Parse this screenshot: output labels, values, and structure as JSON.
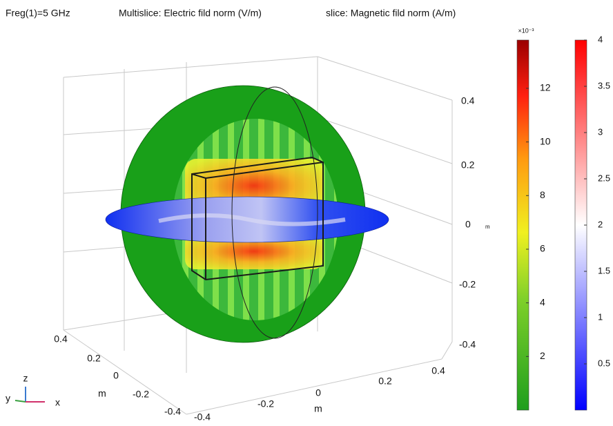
{
  "header": {
    "frequency": "Freg(1)=5 GHz",
    "multislice": "Multislice: Electric fild norm (V/m)",
    "slice": "slice: Magnetic fild norm (A/m)"
  },
  "z_axis": {
    "ticks": [
      "0.4",
      "0.2",
      "0",
      "-0.2",
      "-0.4"
    ],
    "unit": "m"
  },
  "y_axis": {
    "ticks": [
      "0.4",
      "0.2",
      "0",
      "-0.2",
      "-0.4"
    ],
    "label": "m"
  },
  "x_axis": {
    "ticks": [
      "-0.4",
      "-0.2",
      "0",
      "0.2",
      "0.4"
    ],
    "label": "m"
  },
  "triad": {
    "z": "z",
    "y": "y",
    "x": "x"
  },
  "colorbars": [
    {
      "exponent": "×10⁻³",
      "lim": [
        0,
        13.8
      ],
      "ticks": [
        12,
        10,
        8,
        6,
        4,
        2
      ]
    },
    {
      "lim": [
        0,
        4
      ],
      "ticks": [
        4,
        3.5,
        3,
        2.5,
        2,
        1.5,
        1,
        0.5
      ]
    }
  ]
}
